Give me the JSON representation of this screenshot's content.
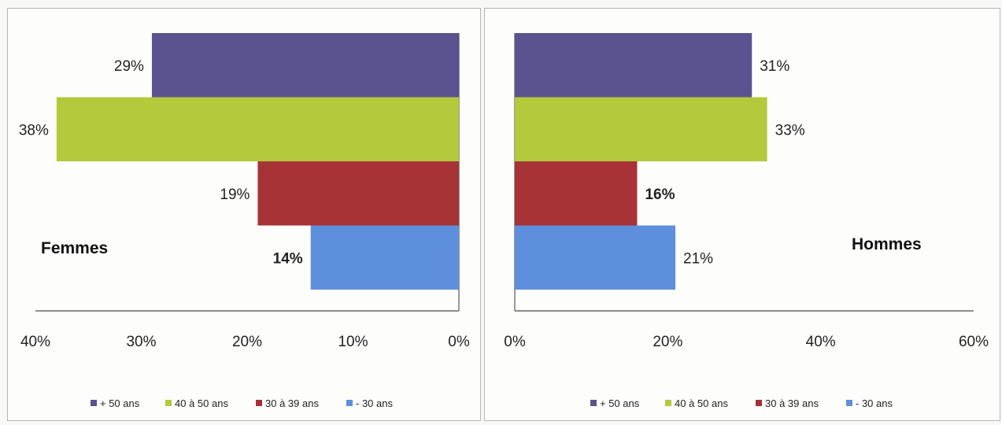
{
  "chart_data": [
    {
      "type": "bar",
      "orientation": "horizontal",
      "direction": "right-to-left",
      "title": "Femmes",
      "categories": [
        "+ 50 ans",
        "40 à 50 ans",
        "30 à 39 ans",
        "- 30 ans"
      ],
      "values": [
        29,
        38,
        19,
        14
      ],
      "value_labels": [
        "29%",
        "38%",
        "19%",
        "14%"
      ],
      "bold_value_labels": [
        false,
        false,
        false,
        true
      ],
      "colors": [
        "#5b5290",
        "#b5c93c",
        "#a63235",
        "#5e8fdc"
      ],
      "xlim": [
        0,
        40
      ],
      "ticks": [
        "40%",
        "30%",
        "20%",
        "10%",
        "0%"
      ],
      "legend": [
        "+ 50 ans",
        "40 à 50 ans",
        "30 à 39 ans",
        "- 30 ans"
      ],
      "legend_position": "bottom"
    },
    {
      "type": "bar",
      "orientation": "horizontal",
      "direction": "left-to-right",
      "title": "Hommes",
      "categories": [
        "+ 50 ans",
        "40 à 50 ans",
        "30 à 39 ans",
        "- 30 ans"
      ],
      "values": [
        31,
        33,
        16,
        21
      ],
      "value_labels": [
        "31%",
        "33%",
        "16%",
        "21%"
      ],
      "bold_value_labels": [
        false,
        false,
        true,
        false
      ],
      "colors": [
        "#5b5290",
        "#b5c93c",
        "#a63235",
        "#5e8fdc"
      ],
      "xlim": [
        0,
        60
      ],
      "ticks": [
        "0%",
        "20%",
        "40%",
        "60%"
      ],
      "legend": [
        "+ 50 ans",
        "40 à 50 ans",
        "30 à 39 ans",
        "- 30 ans"
      ],
      "legend_position": "bottom"
    }
  ]
}
